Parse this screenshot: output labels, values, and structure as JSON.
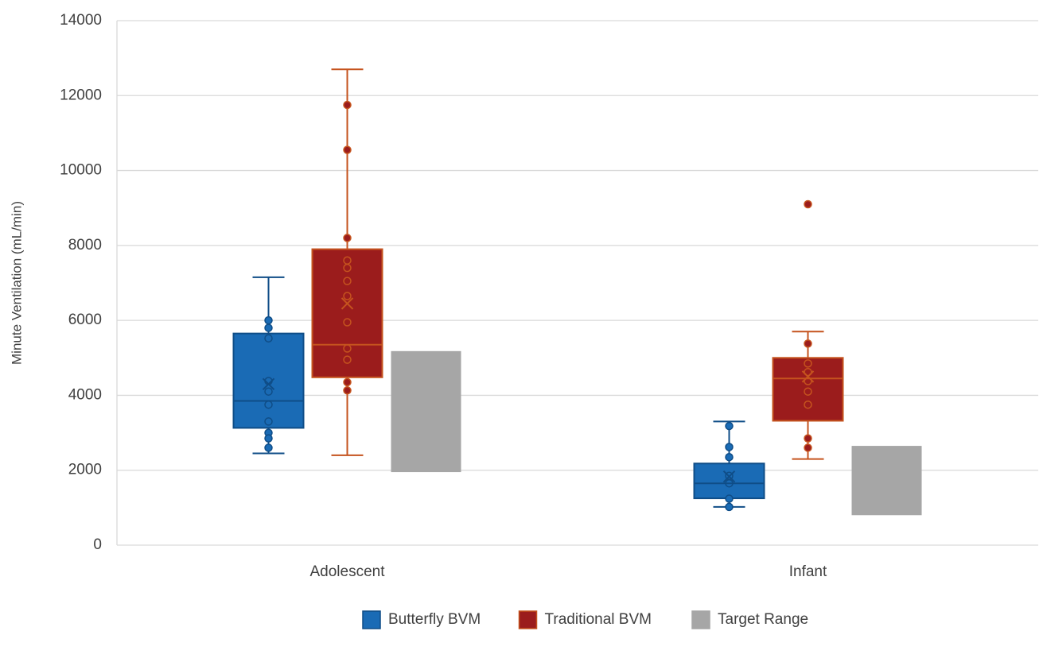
{
  "chart_data": {
    "type": "box",
    "y_label": "Minute Ventilation (mL/min)",
    "categories": [
      "Adolescent",
      "Infant"
    ],
    "ylim": [
      0,
      14000
    ],
    "yticks": [
      0,
      2000,
      4000,
      6000,
      8000,
      10000,
      12000,
      14000
    ],
    "grid": true,
    "legend": "bottom",
    "series": [
      {
        "name": "Butterfly BVM",
        "type": "box",
        "color": "#1a6bb5",
        "edge_color": "#0f4d87",
        "boxes": [
          {
            "min": 2450,
            "q1": 3130,
            "median": 3850,
            "q3": 5650,
            "max": 7150,
            "mean": 4300,
            "points": [
              6000,
              5800,
              5520,
              4380,
              4100,
              3750,
              3300,
              3000,
              2850,
              2600
            ]
          },
          {
            "min": 1020,
            "q1": 1250,
            "median": 1650,
            "q3": 2180,
            "max": 3300,
            "mean": 1830,
            "points": [
              3180,
              2620,
              2350,
              1850,
              1650,
              1240,
              1020
            ]
          }
        ]
      },
      {
        "name": "Traditional BVM",
        "type": "box",
        "color": "#9b1c1c",
        "edge_color": "#c5531e",
        "boxes": [
          {
            "min": 2400,
            "q1": 4480,
            "median": 5350,
            "q3": 7900,
            "max": 12700,
            "mean": 6450,
            "points": [
              11750,
              10550,
              8200,
              7600,
              7400,
              7050,
              6650,
              5950,
              5250,
              4950,
              4350,
              4130
            ]
          },
          {
            "min": 2300,
            "q1": 3320,
            "median": 4450,
            "q3": 5000,
            "max": 5700,
            "mean": 4500,
            "points": [
              9100,
              5380,
              4850,
              4620,
              4380,
              4100,
              3750,
              2850,
              2600
            ]
          }
        ]
      },
      {
        "name": "Target Range",
        "type": "range",
        "color": "#a6a6a6",
        "ranges": [
          {
            "low": 1950,
            "high": 5180
          },
          {
            "low": 800,
            "high": 2650
          }
        ]
      }
    ]
  }
}
